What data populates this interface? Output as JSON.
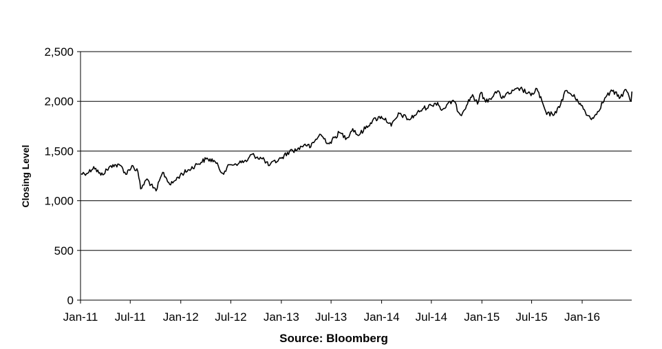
{
  "chart_data": {
    "type": "line",
    "title": "",
    "xlabel": "Source: Bloomberg",
    "ylabel": "Closing Level",
    "ylim": [
      0,
      2500
    ],
    "xlim": [
      "2011-01-01",
      "2016-06-30"
    ],
    "grid": "horizontal",
    "x_tick_labels": [
      "Jan-11",
      "Jul-11",
      "Jan-12",
      "Jul-12",
      "Jan-13",
      "Jul-13",
      "Jan-14",
      "Jul-14",
      "Jan-15",
      "Jul-15",
      "Jan-16"
    ],
    "y_tick_labels": [
      "0",
      "500",
      "1,000",
      "1,500",
      "2,000",
      "2,500"
    ],
    "y_ticks": [
      0,
      500,
      1000,
      1500,
      2000,
      2500
    ],
    "series": [
      {
        "name": "",
        "color": "#000000",
        "points": [
          [
            "2011-01-03",
            1271
          ],
          [
            "2011-01-31",
            1286
          ],
          [
            "2011-02-18",
            1343
          ],
          [
            "2011-03-16",
            1257
          ],
          [
            "2011-04-29",
            1363
          ],
          [
            "2011-05-31",
            1345
          ],
          [
            "2011-06-15",
            1265
          ],
          [
            "2011-07-07",
            1353
          ],
          [
            "2011-07-29",
            1292
          ],
          [
            "2011-08-08",
            1119
          ],
          [
            "2011-08-31",
            1219
          ],
          [
            "2011-09-22",
            1129
          ],
          [
            "2011-10-03",
            1099
          ],
          [
            "2011-10-27",
            1285
          ],
          [
            "2011-11-25",
            1159
          ],
          [
            "2011-12-30",
            1258
          ],
          [
            "2012-01-31",
            1312
          ],
          [
            "2012-02-29",
            1366
          ],
          [
            "2012-04-02",
            1419
          ],
          [
            "2012-05-01",
            1405
          ],
          [
            "2012-06-01",
            1278
          ],
          [
            "2012-06-29",
            1362
          ],
          [
            "2012-07-31",
            1379
          ],
          [
            "2012-08-31",
            1406
          ],
          [
            "2012-09-14",
            1465
          ],
          [
            "2012-10-31",
            1412
          ],
          [
            "2012-11-15",
            1353
          ],
          [
            "2012-12-31",
            1426
          ],
          [
            "2013-01-31",
            1498
          ],
          [
            "2013-02-28",
            1515
          ],
          [
            "2013-03-28",
            1569
          ],
          [
            "2013-04-18",
            1541
          ],
          [
            "2013-05-21",
            1669
          ],
          [
            "2013-06-24",
            1573
          ],
          [
            "2013-07-31",
            1686
          ],
          [
            "2013-08-27",
            1630
          ],
          [
            "2013-09-18",
            1725
          ],
          [
            "2013-10-08",
            1656
          ],
          [
            "2013-11-29",
            1806
          ],
          [
            "2013-12-31",
            1848
          ],
          [
            "2014-01-31",
            1783
          ],
          [
            "2014-02-05",
            1751
          ],
          [
            "2014-03-07",
            1878
          ],
          [
            "2014-04-11",
            1815
          ],
          [
            "2014-05-30",
            1923
          ],
          [
            "2014-06-30",
            1960
          ],
          [
            "2014-07-24",
            1988
          ],
          [
            "2014-08-07",
            1910
          ],
          [
            "2014-09-18",
            2011
          ],
          [
            "2014-10-15",
            1862
          ],
          [
            "2014-11-28",
            2067
          ],
          [
            "2014-12-16",
            1972
          ],
          [
            "2014-12-29",
            2090
          ],
          [
            "2015-01-15",
            1992
          ],
          [
            "2015-02-27",
            2104
          ],
          [
            "2015-03-11",
            2040
          ],
          [
            "2015-05-21",
            2131
          ],
          [
            "2015-06-29",
            2057
          ],
          [
            "2015-07-20",
            2128
          ],
          [
            "2015-08-25",
            1867
          ],
          [
            "2015-09-29",
            1884
          ],
          [
            "2015-11-03",
            2109
          ],
          [
            "2015-12-14",
            2021
          ],
          [
            "2016-01-20",
            1859
          ],
          [
            "2016-02-11",
            1829
          ],
          [
            "2016-03-31",
            2059
          ],
          [
            "2016-04-20",
            2102
          ],
          [
            "2016-05-19",
            2040
          ],
          [
            "2016-06-08",
            2119
          ],
          [
            "2016-06-27",
            2000
          ],
          [
            "2016-06-30",
            2099
          ]
        ]
      }
    ]
  }
}
